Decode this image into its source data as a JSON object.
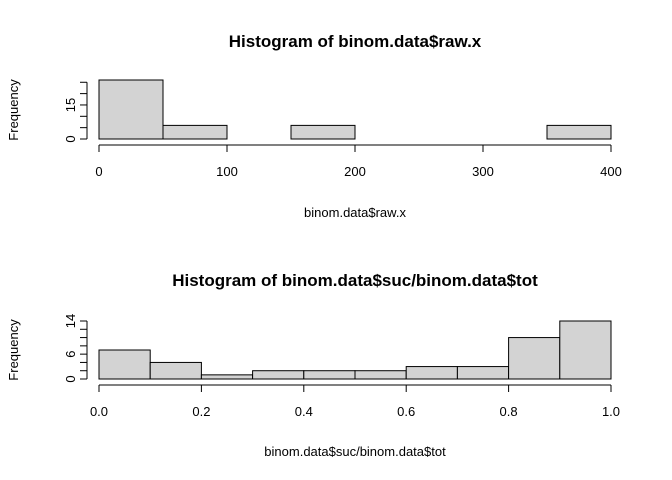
{
  "chart_data": [
    {
      "type": "bar",
      "title": "Histogram of binom.data$raw.x",
      "xlabel": "binom.data$raw.x",
      "ylabel": "Frequency",
      "bins": [
        [
          0,
          50
        ],
        [
          50,
          100
        ],
        [
          100,
          150
        ],
        [
          150,
          200
        ],
        [
          200,
          250
        ],
        [
          250,
          300
        ],
        [
          300,
          350
        ],
        [
          350,
          400
        ]
      ],
      "values": [
        26,
        6,
        0,
        6,
        0,
        0,
        0,
        6
      ],
      "xticks": [
        0,
        100,
        200,
        300,
        400
      ],
      "yticks": [
        0,
        15
      ],
      "xlim": [
        0,
        400
      ],
      "ylim": [
        0,
        26
      ],
      "bar_color": "#d3d3d3"
    },
    {
      "type": "bar",
      "title": "Histogram of binom.data$suc/binom.data$tot",
      "xlabel": "binom.data$suc/binom.data$tot",
      "ylabel": "Frequency",
      "bins": [
        [
          0.0,
          0.1
        ],
        [
          0.1,
          0.2
        ],
        [
          0.2,
          0.3
        ],
        [
          0.3,
          0.4
        ],
        [
          0.4,
          0.5
        ],
        [
          0.5,
          0.6
        ],
        [
          0.6,
          0.7
        ],
        [
          0.7,
          0.8
        ],
        [
          0.8,
          0.9
        ],
        [
          0.9,
          1.0
        ]
      ],
      "values": [
        7,
        4,
        1,
        2,
        2,
        2,
        3,
        3,
        10,
        14
      ],
      "xticks": [
        "0.0",
        "0.2",
        "0.4",
        "0.6",
        "0.8",
        "1.0"
      ],
      "yticks": [
        0,
        6,
        14
      ],
      "xlim": [
        0,
        1
      ],
      "ylim": [
        0,
        14
      ],
      "bar_color": "#d3d3d3"
    }
  ]
}
